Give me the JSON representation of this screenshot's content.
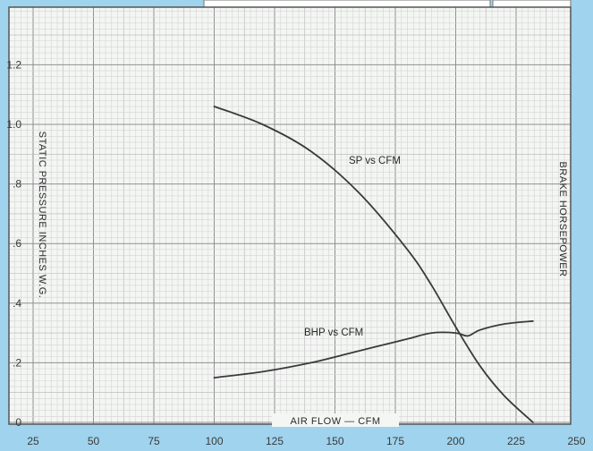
{
  "chart_data": {
    "type": "line",
    "xlabel": "AIR FLOW — CFM",
    "ylabel": "STATIC PRESSURE INCHES W.G.",
    "y2label": "BRAKE HORSEPOWER",
    "xlim": [
      25,
      250
    ],
    "ylim": [
      0,
      1.3
    ],
    "x_ticks": [
      25,
      50,
      75,
      100,
      125,
      150,
      175,
      200,
      225,
      250
    ],
    "x_tick_labels": [
      "25",
      "50",
      "75",
      "100",
      "125",
      "150",
      "175",
      "200",
      "225",
      "250"
    ],
    "y_ticks": [
      0,
      0.2,
      0.4,
      0.6,
      0.8,
      1.0,
      1.2
    ],
    "y_tick_labels": [
      "0",
      ".2",
      ".4",
      ".6",
      ".8",
      "1.0",
      "1.2"
    ],
    "grid": true,
    "series": [
      {
        "name": "SP vs CFM",
        "color": "#3a3a3a",
        "x": [
          100,
          120,
          140,
          160,
          180,
          190,
          200,
          210,
          220,
          232
        ],
        "y": [
          1.06,
          1.0,
          0.91,
          0.77,
          0.58,
          0.46,
          0.32,
          0.19,
          0.09,
          0.0
        ]
      },
      {
        "name": "BHP vs CFM",
        "color": "#3a3a3a",
        "x": [
          100,
          120,
          140,
          160,
          180,
          190,
          200,
          205,
          210,
          220,
          232
        ],
        "y": [
          0.15,
          0.17,
          0.2,
          0.24,
          0.28,
          0.3,
          0.3,
          0.29,
          0.31,
          0.33,
          0.34
        ]
      }
    ],
    "annotations": [
      "SP vs CFM",
      "BHP vs CFM"
    ]
  }
}
